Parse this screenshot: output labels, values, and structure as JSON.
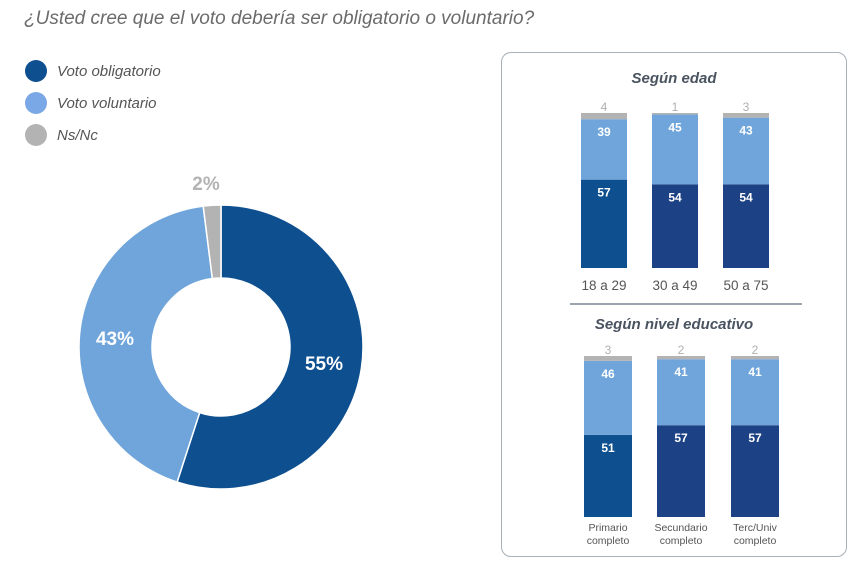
{
  "chart_data": [
    {
      "type": "pie",
      "title": "¿Usted cree que el voto debería ser obligatorio o voluntario?",
      "legend": [
        "Voto obligatorio",
        "Voto voluntario",
        "Ns/Nc"
      ],
      "values": [
        55,
        43,
        2
      ],
      "labels": [
        "55%",
        "43%",
        "2%"
      ],
      "colors": [
        "#0e4f90",
        "#6fa5da",
        "#b3b3b3"
      ],
      "legend_colors": [
        "#0e4f90",
        "#7aa7e6",
        "#b3b3b3"
      ],
      "donut": true
    },
    {
      "type": "bar",
      "stacked": true,
      "title": "Según edad",
      "categories": [
        "18 a 29",
        "30 a 49",
        "50 a 75"
      ],
      "series": [
        {
          "name": "Voto obligatorio",
          "values": [
            57,
            54,
            54
          ]
        },
        {
          "name": "Voto voluntario",
          "values": [
            39,
            45,
            43
          ]
        },
        {
          "name": "Ns/Nc",
          "values": [
            4,
            1,
            3
          ]
        }
      ]
    },
    {
      "type": "bar",
      "stacked": true,
      "title": "Según nivel educativo",
      "categories": [
        [
          "Primario",
          "completo"
        ],
        [
          "Secundario",
          "completo"
        ],
        [
          "Terc/Univ",
          "completo"
        ]
      ],
      "series": [
        {
          "name": "Voto obligatorio",
          "values": [
            51,
            57,
            57
          ]
        },
        {
          "name": "Voto voluntario",
          "values": [
            46,
            41,
            41
          ]
        },
        {
          "name": "Ns/Nc",
          "values": [
            3,
            2,
            2
          ]
        }
      ]
    }
  ]
}
